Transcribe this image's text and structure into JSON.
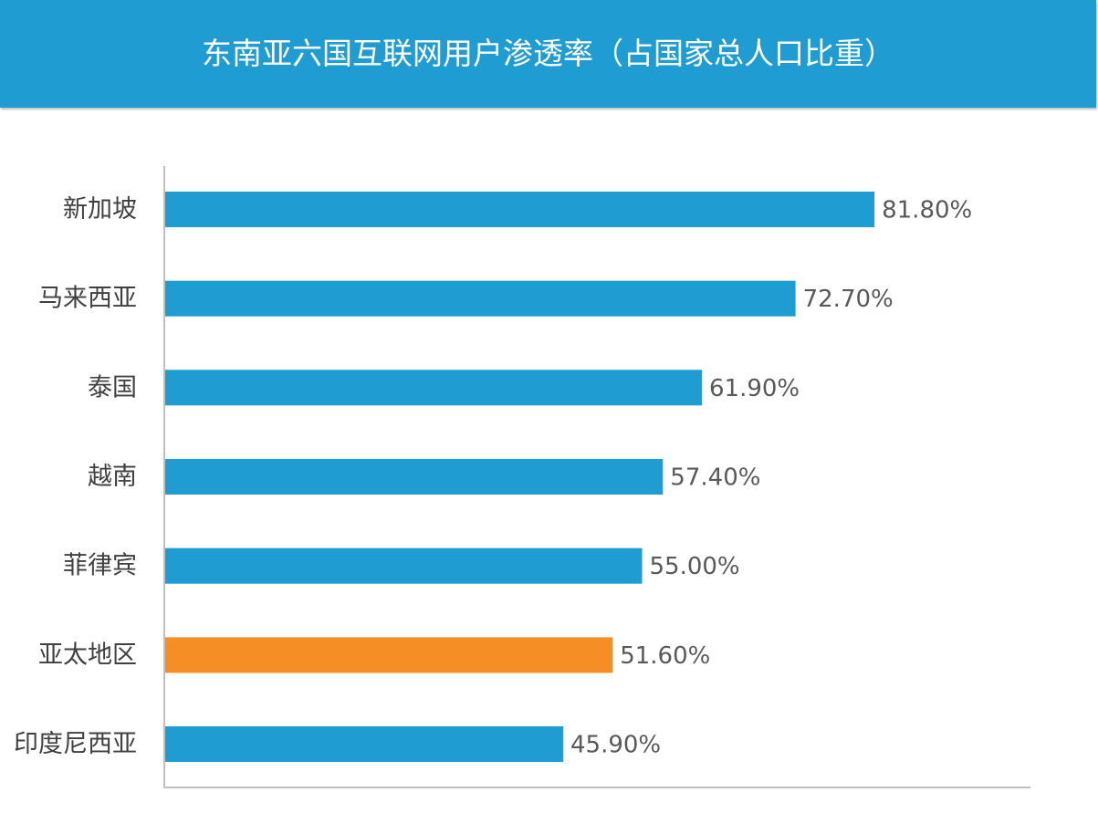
{
  "title": "东南亚六国互联网用户渗透率（占国家总人口比重）",
  "colors": {
    "header_bg": "#1f9cd2",
    "bar_default": "#1f9cd2",
    "bar_highlight": "#f58e24",
    "axis": "#bfbfbf"
  },
  "chart_data": {
    "type": "bar",
    "orientation": "horizontal",
    "title": "东南亚六国互联网用户渗透率（占国家总人口比重）",
    "categories": [
      "新加坡",
      "马来西亚",
      "泰国",
      "越南",
      "菲律宾",
      "亚太地区",
      "印度尼西亚"
    ],
    "values": [
      81.8,
      72.7,
      61.9,
      57.4,
      55.0,
      51.6,
      45.9
    ],
    "value_labels": [
      "81.80%",
      "72.70%",
      "61.90%",
      "57.40%",
      "55.00%",
      "51.60%",
      "45.90%"
    ],
    "highlight_category": "亚太地区",
    "xlim": [
      0,
      100
    ],
    "grid": false,
    "legend": "none"
  }
}
